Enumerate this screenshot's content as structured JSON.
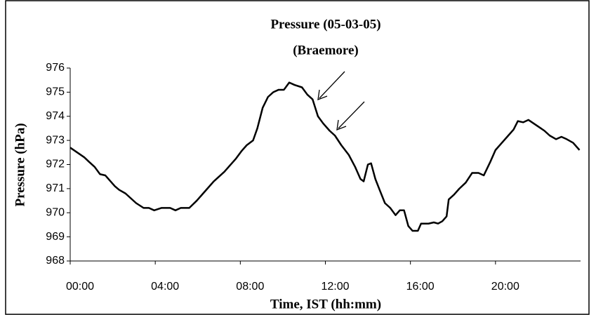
{
  "chart_data": {
    "type": "line",
    "title": "Pressure (05-03-05)",
    "subtitle": "(Braemore)",
    "x_label": "Time, IST (hh:mm)",
    "y_label": "Pressure (hPa)",
    "color": "#000000",
    "x": [
      0,
      0.33,
      0.66,
      0.9,
      1.15,
      1.4,
      1.65,
      1.9,
      2.1,
      2.3,
      2.6,
      2.85,
      3.1,
      3.45,
      3.7,
      3.95,
      4.3,
      4.7,
      4.95,
      5.2,
      5.6,
      5.95,
      6.25,
      6.45,
      6.75,
      7.0,
      7.25,
      7.5,
      7.8,
      8.05,
      8.3,
      8.6,
      8.8,
      9.05,
      9.3,
      9.55,
      9.8,
      10.05,
      10.3,
      10.55,
      10.9,
      11.15,
      11.4,
      11.65,
      11.9,
      12.2,
      12.45,
      12.75,
      13.1,
      13.4,
      13.65,
      13.8,
      14.0,
      14.15,
      14.35,
      14.55,
      14.8,
      15.05,
      15.3,
      15.5,
      15.7,
      15.9,
      16.1,
      16.35,
      16.5,
      16.85,
      17.1,
      17.3,
      17.5,
      17.7,
      17.8,
      18.05,
      18.3,
      18.6,
      18.9,
      19.2,
      19.45,
      19.75,
      20.0,
      20.3,
      20.6,
      20.85,
      21.05,
      21.3,
      21.55,
      21.8,
      22.05,
      22.3,
      22.55,
      22.85,
      23.1,
      23.35,
      23.65,
      23.95
    ],
    "values": [
      972.7,
      972.5,
      972.3,
      972.1,
      971.9,
      971.6,
      971.55,
      971.3,
      971.1,
      970.95,
      970.8,
      970.6,
      970.4,
      970.2,
      970.2,
      970.1,
      970.2,
      970.2,
      970.1,
      970.2,
      970.2,
      970.5,
      970.8,
      971.0,
      971.3,
      971.5,
      971.7,
      971.95,
      972.25,
      972.55,
      972.8,
      973.0,
      973.5,
      974.35,
      974.8,
      975.0,
      975.1,
      975.1,
      975.4,
      975.3,
      975.2,
      974.9,
      974.7,
      974.0,
      973.7,
      973.4,
      973.2,
      972.8,
      972.4,
      971.9,
      971.4,
      971.3,
      972.0,
      972.05,
      971.4,
      970.95,
      970.4,
      970.2,
      969.9,
      970.1,
      970.1,
      969.45,
      969.25,
      969.25,
      969.55,
      969.55,
      969.6,
      969.55,
      969.65,
      969.85,
      970.55,
      970.75,
      971.0,
      971.25,
      971.65,
      971.65,
      971.55,
      972.1,
      972.6,
      972.9,
      973.2,
      973.45,
      973.8,
      973.75,
      973.85,
      973.7,
      973.55,
      973.4,
      973.2,
      973.05,
      973.15,
      973.05,
      972.9,
      972.6
    ],
    "xlim": [
      0,
      24
    ],
    "xticks": [
      {
        "value": 0,
        "label": "00:00"
      },
      {
        "value": 4,
        "label": "04:00"
      },
      {
        "value": 8,
        "label": "08:00"
      },
      {
        "value": 12,
        "label": "12:00"
      },
      {
        "value": 16,
        "label": "16:00"
      },
      {
        "value": 20,
        "label": "20:00"
      }
    ],
    "ylim": [
      968,
      976
    ],
    "yticks": [
      968,
      969,
      970,
      971,
      972,
      973,
      974,
      975,
      976
    ]
  }
}
